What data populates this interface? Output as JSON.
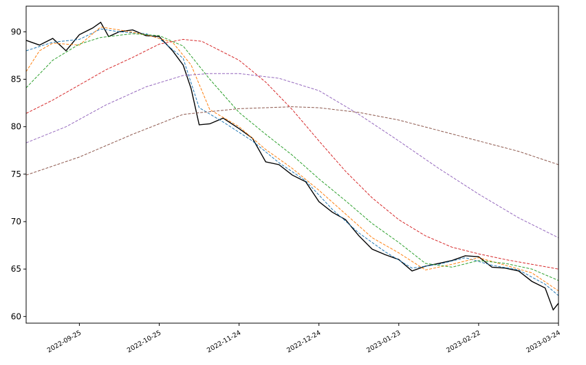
{
  "chart_data": {
    "type": "line",
    "title": "",
    "xlabel": "",
    "ylabel": "",
    "x_range": [
      "2022-09-05",
      "2023-03-24"
    ],
    "ylim": [
      59.3,
      92.7
    ],
    "grid": false,
    "legend": "none",
    "x_ticks": [
      "2022-09-25",
      "2022-10-25",
      "2022-11-24",
      "2022-12-24",
      "2023-01-23",
      "2023-02-22",
      "2023-03-24"
    ],
    "y_ticks": [
      60,
      65,
      70,
      75,
      80,
      85,
      90
    ],
    "series": [
      {
        "color": "#000000",
        "style": "solid",
        "points": [
          [
            "2022-09-05",
            89.1
          ],
          [
            "2022-09-10",
            88.6
          ],
          [
            "2022-09-15",
            89.3
          ],
          [
            "2022-09-20",
            88.0
          ],
          [
            "2022-09-25",
            89.7
          ],
          [
            "2022-09-30",
            90.4
          ],
          [
            "2022-10-03",
            91.0
          ],
          [
            "2022-10-06",
            89.5
          ],
          [
            "2022-10-10",
            90.0
          ],
          [
            "2022-10-15",
            90.2
          ],
          [
            "2022-10-20",
            89.6
          ],
          [
            "2022-10-25",
            89.5
          ],
          [
            "2022-10-30",
            88.0
          ],
          [
            "2022-11-03",
            86.5
          ],
          [
            "2022-11-06",
            84.0
          ],
          [
            "2022-11-09",
            80.2
          ],
          [
            "2022-11-13",
            80.3
          ],
          [
            "2022-11-18",
            80.9
          ],
          [
            "2022-11-24",
            79.8
          ],
          [
            "2022-11-29",
            78.8
          ],
          [
            "2022-12-04",
            76.3
          ],
          [
            "2022-12-09",
            76.0
          ],
          [
            "2022-12-14",
            74.9
          ],
          [
            "2022-12-19",
            74.2
          ],
          [
            "2022-12-24",
            72.1
          ],
          [
            "2022-12-29",
            71.0
          ],
          [
            "2023-01-03",
            70.2
          ],
          [
            "2023-01-08",
            68.5
          ],
          [
            "2023-01-13",
            67.1
          ],
          [
            "2023-01-18",
            66.5
          ],
          [
            "2023-01-23",
            66.0
          ],
          [
            "2023-01-28",
            64.8
          ],
          [
            "2023-02-02",
            65.3
          ],
          [
            "2023-02-07",
            65.6
          ],
          [
            "2023-02-12",
            65.9
          ],
          [
            "2023-02-17",
            66.4
          ],
          [
            "2023-02-22",
            66.3
          ],
          [
            "2023-02-27",
            65.2
          ],
          [
            "2023-03-04",
            65.1
          ],
          [
            "2023-03-09",
            64.8
          ],
          [
            "2023-03-14",
            63.7
          ],
          [
            "2023-03-19",
            63.0
          ],
          [
            "2023-03-22",
            60.7
          ],
          [
            "2023-03-24",
            61.4
          ]
        ]
      },
      {
        "color": "#1f77b4",
        "style": "dashed",
        "points": [
          [
            "2022-09-05",
            88.0
          ],
          [
            "2022-09-15",
            88.9
          ],
          [
            "2022-09-25",
            89.2
          ],
          [
            "2022-10-03",
            90.3
          ],
          [
            "2022-10-10",
            90.0
          ],
          [
            "2022-10-20",
            89.8
          ],
          [
            "2022-10-25",
            89.3
          ],
          [
            "2022-11-03",
            87.2
          ],
          [
            "2022-11-09",
            82.0
          ],
          [
            "2022-11-18",
            80.5
          ],
          [
            "2022-11-29",
            78.5
          ],
          [
            "2022-12-09",
            76.2
          ],
          [
            "2022-12-19",
            74.3
          ],
          [
            "2022-12-29",
            71.3
          ],
          [
            "2023-01-08",
            68.8
          ],
          [
            "2023-01-18",
            66.8
          ],
          [
            "2023-01-28",
            65.1
          ],
          [
            "2023-02-07",
            65.5
          ],
          [
            "2023-02-17",
            66.2
          ],
          [
            "2023-02-27",
            65.4
          ],
          [
            "2023-03-09",
            64.9
          ],
          [
            "2023-03-19",
            63.4
          ],
          [
            "2023-03-24",
            62.2
          ]
        ]
      },
      {
        "color": "#ff7f0e",
        "style": "dashed",
        "points": [
          [
            "2022-09-05",
            85.8
          ],
          [
            "2022-09-10",
            88.0
          ],
          [
            "2022-09-15",
            88.8
          ],
          [
            "2022-09-25",
            88.6
          ],
          [
            "2022-10-03",
            90.5
          ],
          [
            "2022-10-10",
            90.2
          ],
          [
            "2022-10-20",
            89.7
          ],
          [
            "2022-10-30",
            88.9
          ],
          [
            "2022-11-06",
            86.5
          ],
          [
            "2022-11-13",
            81.8
          ],
          [
            "2022-11-24",
            80.0
          ],
          [
            "2022-12-04",
            77.6
          ],
          [
            "2022-12-14",
            75.6
          ],
          [
            "2022-12-24",
            73.3
          ],
          [
            "2023-01-03",
            70.8
          ],
          [
            "2023-01-13",
            68.3
          ],
          [
            "2023-01-23",
            66.7
          ],
          [
            "2023-02-02",
            64.9
          ],
          [
            "2023-02-12",
            65.5
          ],
          [
            "2023-02-22",
            66.2
          ],
          [
            "2023-03-04",
            65.4
          ],
          [
            "2023-03-14",
            64.6
          ],
          [
            "2023-03-24",
            62.7
          ]
        ]
      },
      {
        "color": "#2ca02c",
        "style": "dashed",
        "points": [
          [
            "2022-09-05",
            84.1
          ],
          [
            "2022-09-15",
            87.0
          ],
          [
            "2022-09-25",
            88.7
          ],
          [
            "2022-10-03",
            89.4
          ],
          [
            "2022-10-15",
            89.8
          ],
          [
            "2022-10-25",
            89.6
          ],
          [
            "2022-11-03",
            88.5
          ],
          [
            "2022-11-13",
            85.0
          ],
          [
            "2022-11-24",
            81.5
          ],
          [
            "2022-12-04",
            79.2
          ],
          [
            "2022-12-14",
            77.0
          ],
          [
            "2022-12-24",
            74.5
          ],
          [
            "2023-01-03",
            72.2
          ],
          [
            "2023-01-13",
            69.8
          ],
          [
            "2023-01-23",
            67.8
          ],
          [
            "2023-02-02",
            65.6
          ],
          [
            "2023-02-12",
            65.2
          ],
          [
            "2023-02-22",
            65.9
          ],
          [
            "2023-03-04",
            65.6
          ],
          [
            "2023-03-14",
            65.0
          ],
          [
            "2023-03-24",
            63.8
          ]
        ]
      },
      {
        "color": "#d62728",
        "style": "dashed",
        "points": [
          [
            "2022-09-05",
            81.4
          ],
          [
            "2022-09-15",
            82.8
          ],
          [
            "2022-09-25",
            84.4
          ],
          [
            "2022-10-05",
            86.0
          ],
          [
            "2022-10-15",
            87.3
          ],
          [
            "2022-10-25",
            88.7
          ],
          [
            "2022-11-03",
            89.2
          ],
          [
            "2022-11-10",
            89.0
          ],
          [
            "2022-11-24",
            87.0
          ],
          [
            "2022-12-04",
            84.7
          ],
          [
            "2022-12-14",
            81.8
          ],
          [
            "2022-12-24",
            78.5
          ],
          [
            "2023-01-03",
            75.3
          ],
          [
            "2023-01-13",
            72.5
          ],
          [
            "2023-01-23",
            70.2
          ],
          [
            "2023-02-02",
            68.5
          ],
          [
            "2023-02-12",
            67.3
          ],
          [
            "2023-02-22",
            66.6
          ],
          [
            "2023-03-04",
            66.0
          ],
          [
            "2023-03-14",
            65.5
          ],
          [
            "2023-03-24",
            65.0
          ]
        ]
      },
      {
        "color": "#9467bd",
        "style": "dashed",
        "points": [
          [
            "2022-09-05",
            78.3
          ],
          [
            "2022-09-20",
            80.0
          ],
          [
            "2022-10-05",
            82.3
          ],
          [
            "2022-10-20",
            84.2
          ],
          [
            "2022-11-03",
            85.4
          ],
          [
            "2022-11-13",
            85.6
          ],
          [
            "2022-11-24",
            85.6
          ],
          [
            "2022-12-09",
            85.1
          ],
          [
            "2022-12-24",
            83.8
          ],
          [
            "2023-01-08",
            81.3
          ],
          [
            "2023-01-23",
            78.5
          ],
          [
            "2023-02-07",
            75.6
          ],
          [
            "2023-02-22",
            72.9
          ],
          [
            "2023-03-09",
            70.4
          ],
          [
            "2023-03-24",
            68.3
          ]
        ]
      },
      {
        "color": "#8c564b",
        "style": "dashed",
        "points": [
          [
            "2022-09-05",
            74.9
          ],
          [
            "2022-09-25",
            76.8
          ],
          [
            "2022-10-15",
            79.2
          ],
          [
            "2022-11-03",
            81.3
          ],
          [
            "2022-11-24",
            81.9
          ],
          [
            "2022-12-14",
            82.1
          ],
          [
            "2022-12-24",
            82.0
          ],
          [
            "2023-01-08",
            81.5
          ],
          [
            "2023-01-23",
            80.7
          ],
          [
            "2023-02-07",
            79.6
          ],
          [
            "2023-02-22",
            78.5
          ],
          [
            "2023-03-09",
            77.4
          ],
          [
            "2023-03-24",
            76.0
          ]
        ]
      }
    ]
  }
}
